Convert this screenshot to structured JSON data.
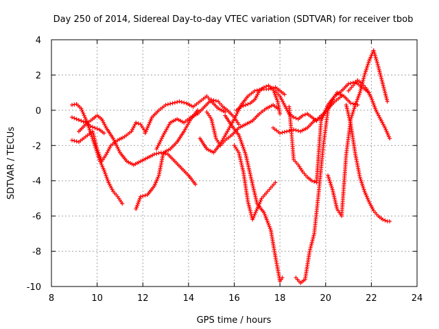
{
  "chart_data": {
    "type": "scatter",
    "title": "Day 250 of 2014, Sidereal Day-to-day VTEC variation (SDTVAR) for receiver tbob",
    "xlabel": "GPS time / hours",
    "ylabel": "SDTVAR / TECUs",
    "xlim": [
      8,
      24
    ],
    "ylim": [
      -10,
      4
    ],
    "xticks": [
      "8",
      "10",
      "12",
      "14",
      "16",
      "18",
      "20",
      "22",
      "24"
    ],
    "yticks": [
      "-10",
      "-8",
      "-6",
      "-4",
      "-2",
      "0",
      "2",
      "4"
    ],
    "grid": true,
    "marker": "+",
    "color": "#ff0000",
    "series": [
      {
        "x": [
          8.9,
          9.1,
          9.3,
          9.5,
          9.7,
          9.9,
          10.1,
          10.3,
          10.5,
          10.7,
          10.9,
          11.1
        ],
        "y": [
          0.3,
          0.35,
          0.1,
          -0.5,
          -1.2,
          -2.0,
          -2.8,
          -3.4,
          -4.1,
          -4.6,
          -4.9,
          -5.3
        ]
      },
      {
        "x": [
          8.9,
          9.1,
          9.3,
          9.5,
          9.7,
          9.9,
          10.1,
          10.3
        ],
        "y": [
          -0.4,
          -0.5,
          -0.6,
          -0.7,
          -0.9,
          -1.0,
          -1.1,
          -1.3
        ]
      },
      {
        "x": [
          8.9,
          9.2,
          9.5,
          9.8,
          10.0,
          10.2,
          10.4,
          10.6,
          10.9,
          11.2,
          11.5,
          11.7,
          11.9,
          12.1
        ],
        "y": [
          -1.7,
          -1.8,
          -1.5,
          -1.2,
          -2.2,
          -2.9,
          -2.5,
          -2.0,
          -1.7,
          -1.5,
          -1.2,
          -0.7,
          -0.8,
          -1.2
        ]
      },
      {
        "x": [
          9.2,
          9.5,
          9.8,
          10.0,
          10.2,
          10.4,
          10.7,
          11.0,
          11.3,
          11.6,
          11.9,
          12.2,
          12.5,
          12.8,
          13.1,
          13.4,
          13.7,
          14.0,
          14.3
        ],
        "y": [
          -1.2,
          -0.8,
          -0.5,
          -0.3,
          -0.5,
          -1.0,
          -1.6,
          -2.4,
          -2.9,
          -3.1,
          -2.9,
          -2.7,
          -2.5,
          -2.4,
          -2.5,
          -2.9,
          -3.3,
          -3.7,
          -4.2
        ]
      },
      {
        "x": [
          11.7,
          11.9,
          12.2,
          12.5,
          12.7,
          12.9,
          13.2,
          13.5,
          13.8,
          14.1,
          14.4
        ],
        "y": [
          -5.6,
          -4.9,
          -4.8,
          -4.3,
          -3.7,
          -2.4,
          -2.2,
          -1.8,
          -1.2,
          -0.5,
          0.0
        ]
      },
      {
        "x": [
          12.1,
          12.4,
          12.7,
          13.0,
          13.3,
          13.6,
          13.9,
          14.2,
          14.5,
          14.8,
          15.0,
          15.3,
          15.6
        ],
        "y": [
          -1.3,
          -0.4,
          0.0,
          0.3,
          0.4,
          0.5,
          0.4,
          0.2,
          0.5,
          0.8,
          0.5,
          0.1,
          -0.1
        ]
      },
      {
        "x": [
          12.6,
          12.9,
          13.2,
          13.5,
          13.8,
          14.1,
          14.4,
          14.7,
          15.0,
          15.3,
          15.5,
          15.7,
          16.0,
          16.2
        ],
        "y": [
          -2.2,
          -1.4,
          -0.7,
          -0.5,
          -0.7,
          -0.4,
          -0.2,
          0.2,
          0.6,
          0.5,
          0.2,
          0.0,
          -0.4,
          -0.8
        ]
      },
      {
        "x": [
          14.5,
          14.8,
          15.1,
          15.4,
          15.7,
          16.0,
          16.3,
          16.6,
          16.9,
          17.2,
          17.5,
          17.8,
          18.0,
          18.2
        ],
        "y": [
          -1.6,
          -2.2,
          -2.4,
          -1.9,
          -1.2,
          -0.5,
          0.3,
          0.8,
          1.1,
          1.2,
          1.2,
          1.3,
          1.1,
          0.9
        ]
      },
      {
        "x": [
          14.8,
          15.0,
          15.2,
          15.4,
          15.6,
          15.9,
          16.2,
          16.5,
          16.8,
          17.1,
          17.4,
          17.7,
          17.9
        ],
        "y": [
          -0.1,
          -0.5,
          -1.6,
          -2.0,
          -1.7,
          -1.4,
          -1.0,
          -0.8,
          -0.6,
          -0.2,
          0.1,
          0.3,
          0.1
        ]
      },
      {
        "x": [
          15.6,
          15.9,
          16.2,
          16.5,
          16.8,
          17.0,
          17.3,
          17.6,
          17.8,
          18.0,
          18.1
        ],
        "y": [
          -0.3,
          -0.9,
          -1.4,
          -2.5,
          -4.2,
          -5.3,
          -5.8,
          -6.8,
          -8.3,
          -9.7,
          -9.5
        ]
      },
      {
        "x": [
          16.1,
          16.3,
          16.5,
          16.7,
          16.9,
          17.1,
          17.3,
          17.5,
          17.7,
          17.9,
          18.0
        ],
        "y": [
          0.0,
          0.2,
          0.3,
          0.4,
          0.6,
          1.1,
          1.3,
          1.4,
          1.2,
          0.5,
          -0.2
        ]
      },
      {
        "x": [
          16.0,
          16.2,
          16.4,
          16.6,
          16.8,
          17.0,
          17.2,
          17.4,
          17.6,
          17.8
        ],
        "y": [
          -2.0,
          -2.4,
          -3.5,
          -5.2,
          -6.2,
          -5.6,
          -5.0,
          -4.7,
          -4.4,
          -4.1
        ]
      },
      {
        "x": [
          17.7,
          18.0,
          18.3,
          18.6,
          18.9,
          19.2,
          19.5,
          19.8,
          20.1,
          20.4,
          20.7
        ],
        "y": [
          -1.0,
          -1.3,
          -1.2,
          -1.1,
          -1.2,
          -1.0,
          -0.6,
          -0.4,
          0.1,
          0.5,
          0.8
        ]
      },
      {
        "x": [
          17.8,
          18.0,
          18.2,
          18.4,
          18.6,
          18.8,
          19.0,
          19.2,
          19.4,
          19.6,
          19.8
        ],
        "y": [
          1.1,
          0.8,
          0.3,
          -0.2,
          -0.4,
          -0.5,
          -0.3,
          -0.2,
          -0.4,
          -0.6,
          -0.3
        ]
      },
      {
        "x": [
          18.4,
          18.5,
          18.6,
          18.8,
          19.0,
          19.2,
          19.4,
          19.6,
          19.8,
          20.1,
          20.4,
          20.7,
          21.0,
          21.3,
          21.6,
          21.9
        ],
        "y": [
          0.2,
          -1.2,
          -2.8,
          -3.1,
          -3.5,
          -3.8,
          -4.0,
          -4.1,
          -0.6,
          0.3,
          0.8,
          1.1,
          1.5,
          1.6,
          1.3,
          1.0
        ]
      },
      {
        "x": [
          18.7,
          18.9,
          19.1,
          19.3,
          19.5,
          19.7,
          19.9,
          20.1,
          20.3,
          20.5,
          20.8,
          21.1,
          21.4
        ],
        "y": [
          -9.5,
          -9.8,
          -9.6,
          -8.0,
          -7.0,
          -4.6,
          -2.0,
          0.0,
          0.6,
          1.0,
          0.8,
          0.4,
          0.3
        ]
      },
      {
        "x": [
          20.1,
          20.3,
          20.5,
          20.7,
          20.9,
          21.1,
          21.3,
          21.5,
          21.7,
          21.9,
          22.1,
          22.3,
          22.5,
          22.7
        ],
        "y": [
          -3.7,
          -4.5,
          -5.6,
          -6.0,
          -2.5,
          -0.5,
          0.3,
          1.0,
          2.0,
          2.8,
          3.4,
          2.5,
          1.5,
          0.5
        ]
      },
      {
        "x": [
          20.9,
          21.1,
          21.3,
          21.5,
          21.7,
          21.9,
          22.1,
          22.3,
          22.5,
          22.7,
          22.8
        ],
        "y": [
          0.3,
          -0.8,
          -2.5,
          -3.8,
          -4.6,
          -5.2,
          -5.7,
          -6.0,
          -6.2,
          -6.3,
          -6.3
        ]
      },
      {
        "x": [
          21.0,
          21.2,
          21.4,
          21.6,
          21.8,
          22.0,
          22.2,
          22.4,
          22.6,
          22.8
        ],
        "y": [
          1.1,
          1.4,
          1.7,
          1.5,
          1.2,
          0.7,
          0.0,
          -0.5,
          -1.0,
          -1.6
        ]
      }
    ]
  }
}
